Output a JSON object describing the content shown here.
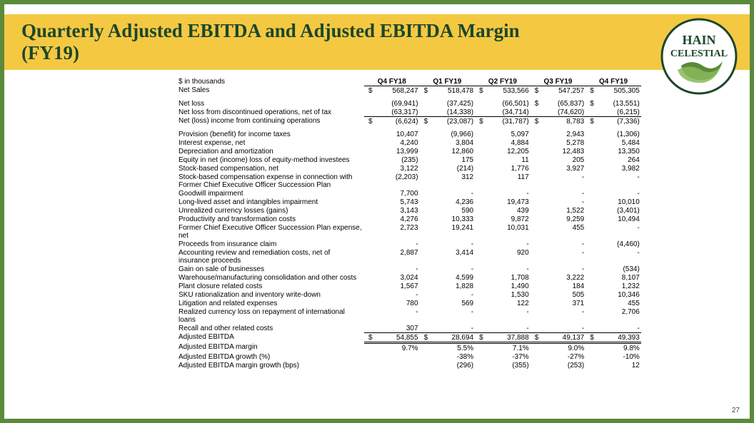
{
  "title": "Quarterly Adjusted EBITDA and Adjusted EBITDA Margin (FY19)",
  "page_number": "27",
  "logo": {
    "top_text": "HAIN",
    "bottom_text": "CELESTIAL"
  },
  "columns_header_label": "$ in thousands",
  "columns": [
    "Q4 FY18",
    "Q1 FY19",
    "Q2 FY19",
    "Q3 FY19",
    "Q4 FY19"
  ],
  "rows": [
    {
      "label": "Net Sales",
      "vals": [
        "568,247",
        "518,478",
        "533,566",
        "547,257",
        "505,305"
      ],
      "cur": [
        "$",
        "$",
        "$",
        "$",
        "$"
      ],
      "cls": "top-border"
    },
    {
      "spacer": true
    },
    {
      "label": "Net loss",
      "vals": [
        "(69,941)",
        "(37,425)",
        "(66,501)",
        "(65,837)",
        "(13,551)"
      ],
      "cur": [
        "",
        "",
        "",
        "$",
        "$"
      ]
    },
    {
      "label": "Net loss from discontinued operations, net of tax",
      "vals": [
        "(63,317)",
        "(14,338)",
        "(34,714)",
        "(74,620)",
        "(6,215)"
      ]
    },
    {
      "label": "Net (loss) income from continuing operations",
      "vals": [
        "(6,624)",
        "(23,087)",
        "(31,787)",
        "8,783",
        "(7,336)"
      ],
      "cur": [
        "$",
        "$",
        "$",
        "$",
        "$"
      ],
      "cls": "top-border"
    },
    {
      "spacer": true
    },
    {
      "label": "Provision (benefit) for income taxes",
      "vals": [
        "10,407",
        "(9,966)",
        "5,097",
        "2,943",
        "(1,306)"
      ]
    },
    {
      "label": "Interest expense, net",
      "vals": [
        "4,240",
        "3,804",
        "4,884",
        "5,278",
        "5,484"
      ]
    },
    {
      "label": "Depreciation and amortization",
      "vals": [
        "13,999",
        "12,860",
        "12,205",
        "12,483",
        "13,350"
      ]
    },
    {
      "label": "Equity in net (income) loss of equity-method investees",
      "vals": [
        "(235)",
        "175",
        "11",
        "205",
        "264"
      ]
    },
    {
      "label": "Stock-based compensation, net",
      "vals": [
        "3,122",
        "(214)",
        "1,776",
        "3,927",
        "3,982"
      ]
    },
    {
      "label": "Stock-based compensation expense in connection with Former Chief Executive Officer Succession Plan",
      "vals": [
        "(2,203)",
        "312",
        "117",
        "-",
        "-"
      ]
    },
    {
      "label": "Goodwill impairment",
      "vals": [
        "7,700",
        "-",
        "-",
        "-",
        "-"
      ]
    },
    {
      "label": "Long-lived asset and intangibles impairment",
      "vals": [
        "5,743",
        "4,236",
        "19,473",
        "-",
        "10,010"
      ]
    },
    {
      "label": "Unrealized currency losses (gains)",
      "vals": [
        "3,143",
        "590",
        "439",
        "1,522",
        "(3,401)"
      ]
    },
    {
      "label": "Productivity and transformation costs",
      "vals": [
        "4,276",
        "10,333",
        "9,872",
        "9,259",
        "10,494"
      ]
    },
    {
      "label": "Former Chief Executive Officer Succession Plan expense, net",
      "vals": [
        "2,723",
        "19,241",
        "10,031",
        "455",
        "-"
      ]
    },
    {
      "label": "Proceeds from insurance claim",
      "vals": [
        "-",
        "-",
        "-",
        "-",
        "(4,460)"
      ]
    },
    {
      "label": "Accounting review and remediation costs, net of insurance proceeds",
      "vals": [
        "2,887",
        "3,414",
        "920",
        "-",
        "-"
      ]
    },
    {
      "label": "Gain on sale of businesses",
      "vals": [
        "-",
        "-",
        "-",
        "-",
        "(534)"
      ]
    },
    {
      "label": "Warehouse/manufacturing consolidation and other costs",
      "vals": [
        "3,024",
        "4,599",
        "1,708",
        "3,222",
        "8,107"
      ]
    },
    {
      "label": "Plant closure related costs",
      "vals": [
        "1,567",
        "1,828",
        "1,490",
        "184",
        "1,232"
      ]
    },
    {
      "label": "SKU rationalization and inventory write-down",
      "vals": [
        "-",
        "-",
        "1,530",
        "505",
        "10,346"
      ]
    },
    {
      "label": "Litigation and related expenses",
      "vals": [
        "780",
        "569",
        "122",
        "371",
        "455"
      ]
    },
    {
      "label": "Realized currency loss on repayment of international loans",
      "vals": [
        "-",
        "-",
        "-",
        "-",
        "2,706"
      ]
    },
    {
      "label": "Recall and other related costs",
      "vals": [
        "307",
        "-",
        "-",
        "-",
        "-"
      ]
    },
    {
      "label": "Adjusted EBITDA",
      "vals": [
        "54,855",
        "28,694",
        "37,888",
        "49,137",
        "49,393"
      ],
      "cur": [
        "$",
        "$",
        "$",
        "$",
        "$"
      ],
      "cls": "dbl-top dbl-bottom"
    },
    {
      "label": "Adjusted EBITDA margin",
      "vals": [
        "9.7%",
        "5.5%",
        "7.1%",
        "9.0%",
        "9.8%"
      ]
    },
    {
      "label": "Adjusted EBITDA growth (%)",
      "vals": [
        "",
        "-38%",
        "-37%",
        "-27%",
        "-10%"
      ]
    },
    {
      "label": "Adjusted EBITDA margin growth (bps)",
      "vals": [
        "",
        "(296)",
        "(355)",
        "(253)",
        "12"
      ]
    }
  ]
}
